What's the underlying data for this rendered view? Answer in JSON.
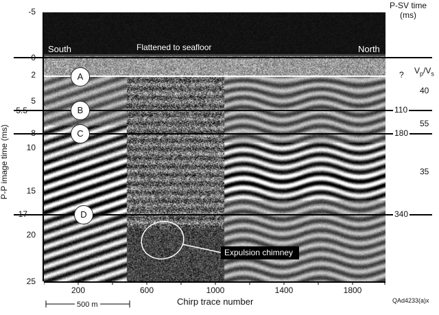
{
  "header": {
    "psv_time_title": "P-SV time",
    "psv_time_units": "(ms)"
  },
  "overlay": {
    "south": "South",
    "north": "North",
    "flattened": "Flattened to seafloor"
  },
  "y_axis": {
    "label": "P-P image time (ms)",
    "ticks": [
      "-5",
      "0",
      "2",
      "5",
      "5.5",
      "8",
      "10",
      "15",
      "17",
      "20",
      "25"
    ]
  },
  "x_axis": {
    "label": "Chirp trace number",
    "ticks": [
      "200",
      "600",
      "1000",
      "1400",
      "1800"
    ]
  },
  "horizons": [
    {
      "id": "A",
      "psv": "?"
    },
    {
      "id": "B",
      "psv": "110"
    },
    {
      "id": "C",
      "psv": "180"
    },
    {
      "id": "D",
      "psv": "340"
    }
  ],
  "vp_vs": {
    "title_main": "V",
    "title_sub1": "p",
    "title_slash": "/V",
    "title_sub2": "s",
    "values": [
      "40",
      "55",
      "35"
    ]
  },
  "annotation": {
    "chimney": "Expulsion chimney"
  },
  "scale_bar": {
    "label": "500 m"
  },
  "figure_id": "QAd4233(a)x"
}
